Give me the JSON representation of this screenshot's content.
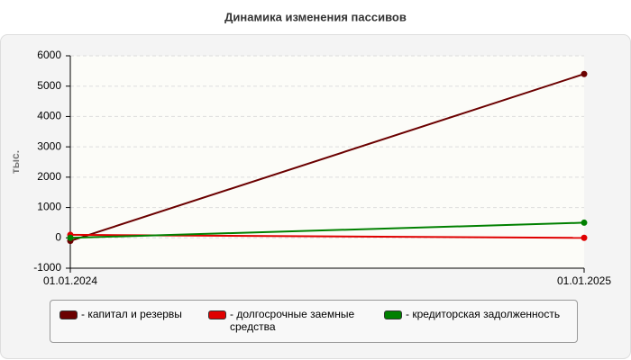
{
  "chart_data": {
    "type": "line",
    "title": "Динамика изменения пассивов",
    "ylabel": "тыс.",
    "categories": [
      "01.01.2024",
      "01.01.2025"
    ],
    "series": [
      {
        "name": "- капитал и резервы",
        "color": "#6b0000",
        "values": [
          -100,
          5400
        ]
      },
      {
        "name": "- долгосрочные заемные средства",
        "color": "#e00000",
        "values": [
          100,
          0
        ]
      },
      {
        "name": "- кредиторская задолженность",
        "color": "#008000",
        "values": [
          0,
          500
        ]
      }
    ],
    "ylim": [
      -1000,
      6000
    ],
    "yticks": [
      -1000,
      0,
      1000,
      2000,
      3000,
      4000,
      5000,
      6000
    ],
    "grid": true
  }
}
